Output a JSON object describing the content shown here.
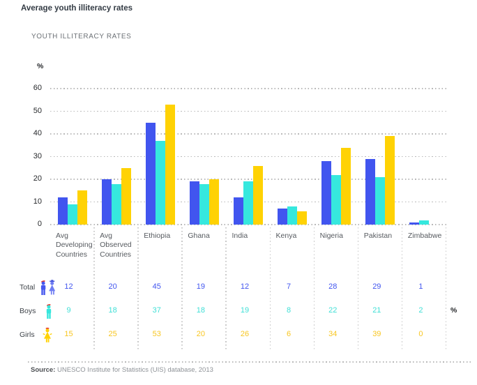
{
  "header": {
    "title": "Average youth illiteracy rates",
    "chart_title": "YOUTH ILLITERACY RATES"
  },
  "chart_data": {
    "type": "bar",
    "title": "YOUTH ILLITERACY RATES",
    "xlabel": "",
    "ylabel": "%",
    "unit": "%",
    "ylim": [
      0,
      60
    ],
    "yticks": [
      0,
      10,
      20,
      30,
      40,
      50,
      60
    ],
    "grid": "horizontal-dotted",
    "legend_position": "table-below",
    "categories": [
      "Avg Developing Countries",
      "Avg Observed Countries",
      "Ethiopia",
      "Ghana",
      "India",
      "Kenya",
      "Nigeria",
      "Pakistan",
      "Zimbabwe"
    ],
    "series": [
      {
        "name": "Total",
        "color": "#4155ef",
        "values": [
          12,
          20,
          45,
          19,
          12,
          7,
          28,
          29,
          1
        ]
      },
      {
        "name": "Boys",
        "color": "#36e8de",
        "values": [
          9,
          18,
          37,
          18,
          19,
          8,
          22,
          21,
          2
        ]
      },
      {
        "name": "Girls",
        "color": "#ffd204",
        "values": [
          15,
          25,
          53,
          20,
          26,
          6,
          34,
          39,
          0
        ]
      }
    ]
  },
  "table": {
    "unit": "%",
    "rows": [
      {
        "label": "Total",
        "series": "Total",
        "icon": "total-people-icon",
        "text_color": "#4155ef"
      },
      {
        "label": "Boys",
        "series": "Boys",
        "icon": "boy-icon",
        "text_color": "#3fdfd6"
      },
      {
        "label": "Girls",
        "series": "Girls",
        "icon": "girl-icon",
        "text_color": "#f8c620"
      }
    ]
  },
  "source": {
    "label": "Source:",
    "text": "UNESCO Institute for Statistics (UIS) database, 2013"
  }
}
